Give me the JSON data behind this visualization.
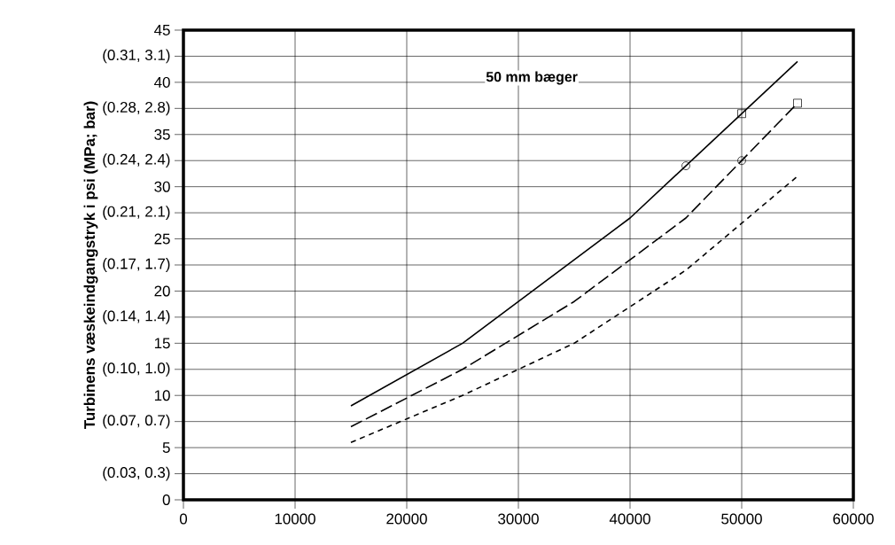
{
  "chart_data": {
    "type": "line",
    "ylabel": "Turbinens væskeindgangstryk i psi (MPa; bar)",
    "annotations": [
      "50 mm bæger"
    ],
    "xlim": [
      0,
      60000
    ],
    "xticks": [
      0,
      10000,
      20000,
      30000,
      40000,
      50000,
      60000
    ],
    "ylim": [
      0,
      45
    ],
    "yticks": [
      0,
      {
        "value": 2.5,
        "label": "(0.03, 0.3)"
      },
      5,
      {
        "value": 7.5,
        "label": "(0.07, 0.7)"
      },
      10,
      {
        "value": 12.5,
        "label": "(0.10, 1.0)"
      },
      15,
      {
        "value": 17.5,
        "label": "(0.14, 1.4)"
      },
      20,
      {
        "value": 22.5,
        "label": "(0.17, 1.7)"
      },
      25,
      {
        "value": 27.5,
        "label": "(0.21, 2.1)"
      },
      30,
      {
        "value": 32.5,
        "label": "(0.24, 2.4)"
      },
      35,
      {
        "value": 37.5,
        "label": "(0.28, 2.8)"
      },
      40,
      {
        "value": 42.5,
        "label": "(0.31, 3.1)"
      },
      45
    ],
    "grid": true,
    "series": [
      {
        "color": "#000000",
        "line_style": "solid",
        "marker": "none",
        "x": [
          15000,
          25000,
          40000,
          55000
        ],
        "values": [
          9,
          15,
          27,
          42
        ]
      },
      {
        "color": "#000000",
        "line_style": "dashed",
        "marker": "none",
        "x": [
          15000,
          25000,
          35000,
          45000,
          55000
        ],
        "values": [
          7,
          12.5,
          19,
          27,
          38
        ]
      },
      {
        "color": "#000000",
        "line_style": "dashed",
        "marker": "none",
        "x": [
          15000,
          25000,
          35000,
          45000,
          55000
        ],
        "values": [
          5.5,
          10,
          15,
          22,
          31
        ]
      },
      {
        "type": "scatter",
        "color": "#000000",
        "marker": "circle",
        "x": [
          45000,
          50000
        ],
        "values": [
          32,
          32.5
        ]
      },
      {
        "type": "scatter",
        "color": "#000000",
        "marker": "square",
        "x": [
          50000,
          55000
        ],
        "values": [
          37,
          38
        ]
      }
    ]
  }
}
